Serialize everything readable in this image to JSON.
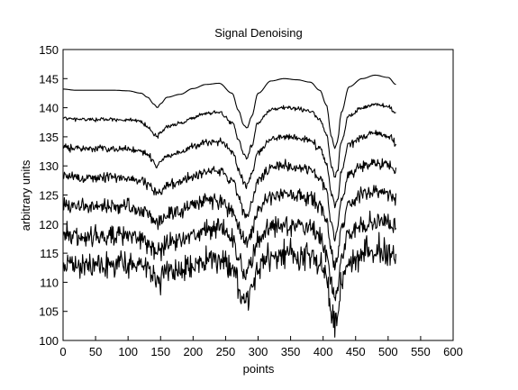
{
  "chart_data": {
    "type": "line",
    "title": "Signal Denoising",
    "xlabel": "points",
    "ylabel": "arbitrary units",
    "xlim": [
      0,
      600
    ],
    "ylim": [
      100,
      150
    ],
    "xticks": [
      0,
      50,
      100,
      150,
      200,
      250,
      300,
      350,
      400,
      450,
      500,
      550,
      600
    ],
    "yticks": [
      100,
      105,
      110,
      115,
      120,
      125,
      130,
      135,
      140,
      145,
      150
    ],
    "grid": false,
    "legend": "none",
    "line_color": "#000000",
    "x_points": [
      0,
      20,
      40,
      60,
      80,
      100,
      120,
      130,
      140,
      145,
      150,
      160,
      180,
      200,
      220,
      240,
      260,
      270,
      278,
      283,
      290,
      300,
      320,
      340,
      360,
      380,
      395,
      405,
      413,
      418,
      422,
      428,
      440,
      460,
      480,
      500,
      512
    ],
    "series": [
      {
        "offset": 35,
        "noise": 0.0,
        "values": [
          143.2,
          143.0,
          143.0,
          143.0,
          143.0,
          142.9,
          142.5,
          141.8,
          140.6,
          140.0,
          140.7,
          141.8,
          142.3,
          143.3,
          144.0,
          144.2,
          142.5,
          139.5,
          137.0,
          136.5,
          138.5,
          142.5,
          144.6,
          145.0,
          144.8,
          144.4,
          143.0,
          140.5,
          135.0,
          133.0,
          134.2,
          139.2,
          143.6,
          145.0,
          145.6,
          145.2,
          144.0
        ]
      },
      {
        "offset": 30,
        "noise": 0.25,
        "values": [
          138.2,
          138.0,
          138.0,
          138.0,
          138.0,
          137.9,
          137.5,
          136.8,
          135.6,
          135.0,
          135.7,
          136.8,
          137.3,
          138.3,
          139.0,
          139.2,
          137.5,
          134.5,
          132.0,
          131.5,
          133.5,
          137.5,
          139.6,
          140.0,
          139.8,
          139.4,
          138.0,
          135.5,
          130.0,
          128.0,
          129.2,
          134.2,
          138.6,
          140.0,
          140.6,
          140.2,
          139.0
        ]
      },
      {
        "offset": 25,
        "noise": 0.45,
        "values": [
          133.2,
          133.0,
          133.0,
          133.0,
          133.0,
          132.9,
          132.5,
          131.8,
          130.6,
          130.0,
          130.7,
          131.8,
          132.3,
          133.3,
          134.0,
          134.2,
          132.5,
          129.5,
          127.0,
          126.5,
          128.5,
          132.5,
          134.6,
          135.0,
          134.8,
          134.4,
          133.0,
          130.5,
          125.0,
          123.0,
          124.2,
          129.2,
          133.6,
          135.0,
          135.6,
          135.2,
          134.0
        ]
      },
      {
        "offset": 20,
        "noise": 0.7,
        "values": [
          128.2,
          128.0,
          128.0,
          128.0,
          128.0,
          127.9,
          127.5,
          126.8,
          125.6,
          125.0,
          125.7,
          126.8,
          127.3,
          128.3,
          129.0,
          129.2,
          127.5,
          124.5,
          122.0,
          121.5,
          123.5,
          127.5,
          129.6,
          130.0,
          129.8,
          129.4,
          128.0,
          125.5,
          120.0,
          118.0,
          119.2,
          124.2,
          128.6,
          130.0,
          130.6,
          130.2,
          129.0
        ]
      },
      {
        "offset": 15,
        "noise": 1.0,
        "values": [
          123.2,
          123.0,
          123.0,
          123.0,
          123.0,
          122.9,
          122.5,
          121.8,
          120.6,
          120.0,
          120.7,
          121.8,
          122.3,
          123.3,
          124.0,
          124.2,
          122.5,
          119.5,
          117.0,
          116.5,
          118.5,
          122.5,
          124.6,
          125.0,
          124.8,
          124.4,
          123.0,
          120.5,
          115.0,
          113.0,
          114.2,
          119.2,
          123.6,
          125.0,
          125.6,
          125.2,
          124.0
        ]
      },
      {
        "offset": 10,
        "noise": 1.35,
        "values": [
          118.2,
          118.0,
          118.0,
          118.0,
          118.0,
          117.9,
          117.5,
          116.8,
          115.6,
          115.0,
          115.7,
          116.8,
          117.3,
          118.3,
          119.0,
          119.2,
          117.5,
          114.5,
          112.0,
          111.5,
          113.5,
          117.5,
          119.6,
          120.0,
          119.8,
          119.4,
          118.0,
          115.5,
          110.0,
          108.0,
          109.2,
          114.2,
          118.6,
          120.0,
          120.6,
          120.2,
          119.0
        ]
      },
      {
        "offset": 5,
        "noise": 1.8,
        "values": [
          113.2,
          113.0,
          113.0,
          113.0,
          113.0,
          112.9,
          112.5,
          111.8,
          110.6,
          110.0,
          110.7,
          111.8,
          112.3,
          113.3,
          114.0,
          114.2,
          112.5,
          109.5,
          107.0,
          106.5,
          108.5,
          112.5,
          114.6,
          115.0,
          114.8,
          114.4,
          113.0,
          110.5,
          105.0,
          103.0,
          104.2,
          109.2,
          113.6,
          115.0,
          115.6,
          115.2,
          114.0
        ]
      }
    ]
  }
}
